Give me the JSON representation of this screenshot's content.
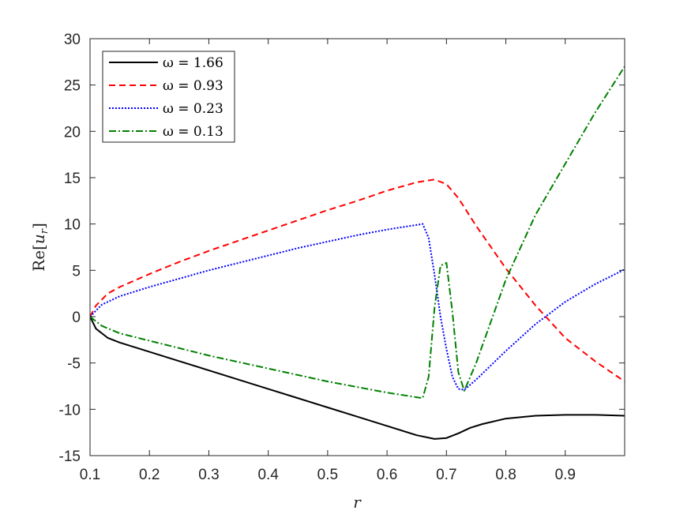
{
  "chart_data": {
    "type": "line",
    "title": "",
    "xlabel": "r",
    "ylabel": "Re[u_r]",
    "xlim": [
      0.1,
      1.0
    ],
    "ylim": [
      -15,
      30
    ],
    "xticks": [
      0.1,
      0.2,
      0.3,
      0.4,
      0.5,
      0.6,
      0.7,
      0.8,
      0.9
    ],
    "xtick_labels": [
      "0.1",
      "0.2",
      "0.3",
      "0.4",
      "0.5",
      "0.6",
      "0.7",
      "0.8",
      "0.9"
    ],
    "yticks": [
      -15,
      -10,
      -5,
      0,
      5,
      10,
      15,
      20,
      25,
      30
    ],
    "ytick_labels": [
      "-15",
      "-10",
      "-5",
      "0",
      "5",
      "10",
      "15",
      "20",
      "25",
      "30"
    ],
    "legend_position": "top-left",
    "grid": false,
    "series": [
      {
        "name": "ω = 1.66",
        "color": "#000000",
        "dash": "solid",
        "x": [
          0.1,
          0.11,
          0.13,
          0.15,
          0.2,
          0.25,
          0.3,
          0.35,
          0.4,
          0.45,
          0.5,
          0.55,
          0.6,
          0.65,
          0.68,
          0.7,
          0.72,
          0.74,
          0.76,
          0.8,
          0.85,
          0.9,
          0.95,
          1.0
        ],
        "y": [
          0,
          -1.3,
          -2.3,
          -2.8,
          -3.8,
          -4.8,
          -5.8,
          -6.8,
          -7.8,
          -8.8,
          -9.8,
          -10.8,
          -11.8,
          -12.8,
          -13.2,
          -13.1,
          -12.6,
          -12.0,
          -11.6,
          -11.0,
          -10.7,
          -10.6,
          -10.6,
          -10.7
        ]
      },
      {
        "name": "ω = 0.93",
        "color": "#ff0000",
        "dash": "dashed",
        "x": [
          0.1,
          0.11,
          0.13,
          0.15,
          0.2,
          0.25,
          0.3,
          0.35,
          0.4,
          0.45,
          0.5,
          0.55,
          0.6,
          0.65,
          0.68,
          0.7,
          0.72,
          0.75,
          0.8,
          0.85,
          0.9,
          0.95,
          1.0
        ],
        "y": [
          0,
          1.2,
          2.5,
          3.2,
          4.6,
          5.9,
          7.1,
          8.2,
          9.3,
          10.4,
          11.5,
          12.5,
          13.6,
          14.5,
          14.8,
          14.3,
          12.8,
          9.8,
          5.2,
          1.2,
          -2.3,
          -4.8,
          -7.0
        ]
      },
      {
        "name": "ω = 0.23",
        "color": "#0000ff",
        "dash": "dotted",
        "x": [
          0.1,
          0.12,
          0.15,
          0.2,
          0.25,
          0.3,
          0.35,
          0.4,
          0.45,
          0.5,
          0.55,
          0.6,
          0.65,
          0.66,
          0.67,
          0.68,
          0.69,
          0.7,
          0.71,
          0.72,
          0.73,
          0.75,
          0.8,
          0.85,
          0.9,
          0.95,
          1.0
        ],
        "y": [
          0,
          1.3,
          2.2,
          3.2,
          4.1,
          5.0,
          5.8,
          6.6,
          7.4,
          8.1,
          8.8,
          9.4,
          9.9,
          10.0,
          8.5,
          4.5,
          0.0,
          -3.5,
          -6.5,
          -7.8,
          -7.9,
          -6.8,
          -3.7,
          -0.8,
          1.6,
          3.5,
          5.1
        ]
      },
      {
        "name": "ω = 0.13",
        "color": "#008000",
        "dash": "dashdot",
        "x": [
          0.1,
          0.12,
          0.15,
          0.2,
          0.25,
          0.3,
          0.35,
          0.4,
          0.45,
          0.5,
          0.55,
          0.6,
          0.65,
          0.66,
          0.67,
          0.68,
          0.69,
          0.7,
          0.71,
          0.72,
          0.73,
          0.75,
          0.8,
          0.85,
          0.9,
          0.95,
          1.0
        ],
        "y": [
          0,
          -1.0,
          -1.8,
          -2.6,
          -3.4,
          -4.2,
          -4.9,
          -5.6,
          -6.3,
          -7.0,
          -7.6,
          -8.2,
          -8.7,
          -8.8,
          -6.5,
          1.0,
          5.5,
          5.8,
          0.5,
          -6.0,
          -8.0,
          -5.0,
          4.0,
          11.0,
          16.5,
          22.0,
          27.0
        ]
      }
    ]
  }
}
